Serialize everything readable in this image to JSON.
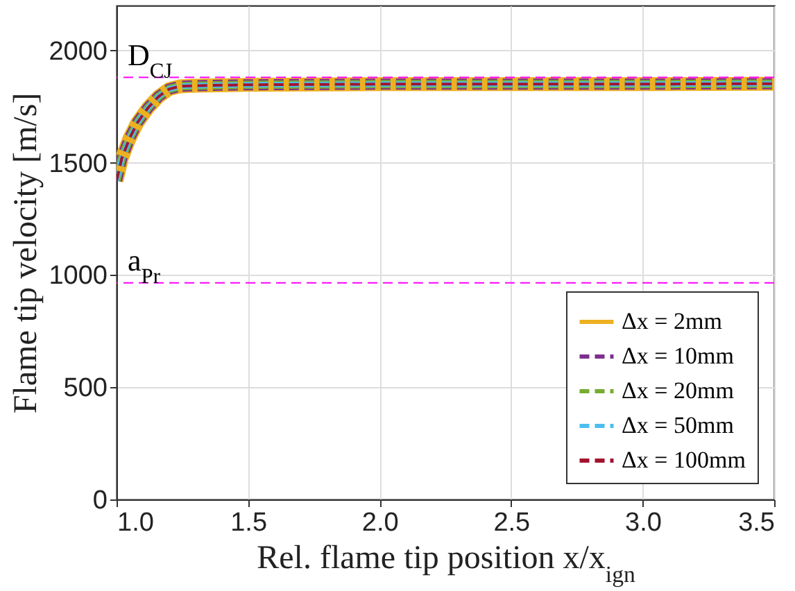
{
  "chart_data": {
    "type": "line",
    "xlabel": "Rel. flame tip position x/x$_{ign}$",
    "ylabel": "Flame tip velocity [m/s]",
    "x": [
      1.0,
      1.02,
      1.05,
      1.08,
      1.12,
      1.16,
      1.2,
      1.24,
      1.3,
      1.5,
      2.0,
      2.5,
      3.0,
      3.5
    ],
    "series": [
      {
        "name": "Δx = 2mm",
        "color": "#edb120",
        "line_style": "solid",
        "values": [
          1420,
          1520,
          1610,
          1680,
          1745,
          1795,
          1828,
          1840,
          1843,
          1847,
          1850,
          1850,
          1850,
          1852
        ]
      },
      {
        "name": "Δx = 10mm",
        "color": "#7e2f8e",
        "line_style": "dashed",
        "values": [
          1420,
          1520,
          1610,
          1680,
          1745,
          1795,
          1828,
          1840,
          1843,
          1847,
          1850,
          1850,
          1850,
          1852
        ]
      },
      {
        "name": "Δx = 20mm",
        "color": "#77ac30",
        "line_style": "dashed",
        "values": [
          1420,
          1520,
          1610,
          1680,
          1745,
          1795,
          1828,
          1840,
          1843,
          1847,
          1850,
          1850,
          1850,
          1852
        ]
      },
      {
        "name": "Δx = 50mm",
        "color": "#4dbeee",
        "line_style": "dashed",
        "values": [
          1420,
          1520,
          1610,
          1680,
          1745,
          1795,
          1828,
          1840,
          1843,
          1847,
          1850,
          1850,
          1850,
          1852
        ]
      },
      {
        "name": "Δx = 100mm",
        "color": "#a2142f",
        "line_style": "dashed",
        "values": [
          1420,
          1520,
          1610,
          1680,
          1745,
          1795,
          1828,
          1840,
          1843,
          1847,
          1850,
          1850,
          1850,
          1852
        ]
      }
    ],
    "xlim": [
      1.0,
      3.5
    ],
    "xticks": [
      {
        "value": 1,
        "label": "1.0"
      },
      1.5,
      {
        "value": 2,
        "label": "2.0"
      },
      2.5,
      {
        "value": 3,
        "label": "3.0"
      },
      3.5
    ],
    "ylim": [
      0,
      2200
    ],
    "yticks": [
      0,
      500,
      1000,
      1500,
      2000
    ],
    "ref_lines": [
      {
        "axis": "y",
        "value": 1880,
        "label": "D$_{CJ}$",
        "color": "#ff00ff",
        "line_style": "dashed"
      },
      {
        "axis": "y",
        "value": 965,
        "label": "a$_{Pr}$",
        "color": "#ff00ff",
        "line_style": "dashed"
      }
    ],
    "grid": true,
    "legend": "bottom right",
    "marker": "none"
  }
}
